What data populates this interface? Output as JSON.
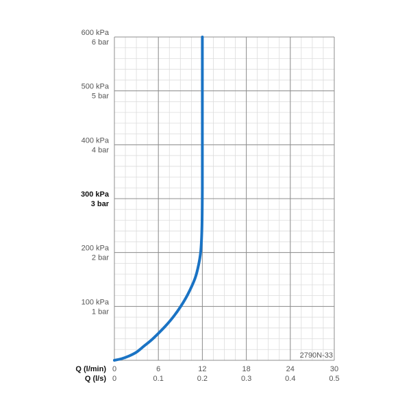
{
  "chart_data": {
    "type": "line",
    "title": "",
    "code_label": "2790N-33",
    "x_axis": {
      "primary_label": "Q (l/min)",
      "secondary_label": "Q (l/s)",
      "range": [
        0,
        30
      ],
      "ticks": [
        "0",
        "6",
        "12",
        "18",
        "24",
        "30"
      ],
      "secondary_ticks": [
        "0",
        "0.1",
        "0.2",
        "0.3",
        "0.4",
        "0.5"
      ]
    },
    "y_axis": {
      "range": [
        0,
        600
      ],
      "unit": "kPa",
      "ticks": [
        {
          "value": 100,
          "kpa": "100 kPa",
          "bar": "1 bar",
          "bold": false
        },
        {
          "value": 200,
          "kpa": "200 kPa",
          "bar": "2 bar",
          "bold": false
        },
        {
          "value": 300,
          "kpa": "300 kPa",
          "bar": "3 bar",
          "bold": true
        },
        {
          "value": 400,
          "kpa": "400 kPa",
          "bar": "4 bar",
          "bold": false
        },
        {
          "value": 500,
          "kpa": "500 kPa",
          "bar": "5 bar",
          "bold": false
        },
        {
          "value": 600,
          "kpa": "600 kPa",
          "bar": "6 bar",
          "bold": false
        }
      ]
    },
    "grid": true,
    "series": [
      {
        "color": "#1a73c4",
        "points": [
          [
            0,
            0
          ],
          [
            1,
            3
          ],
          [
            2,
            8
          ],
          [
            3,
            15
          ],
          [
            4,
            26
          ],
          [
            5,
            37
          ],
          [
            6,
            50
          ],
          [
            7,
            64
          ],
          [
            8,
            80
          ],
          [
            9,
            99
          ],
          [
            10,
            122
          ],
          [
            11,
            152
          ],
          [
            11.5,
            178
          ],
          [
            11.8,
            205
          ],
          [
            11.95,
            250
          ],
          [
            12,
            320
          ],
          [
            12,
            400
          ],
          [
            12,
            500
          ],
          [
            12,
            600
          ]
        ]
      }
    ]
  }
}
